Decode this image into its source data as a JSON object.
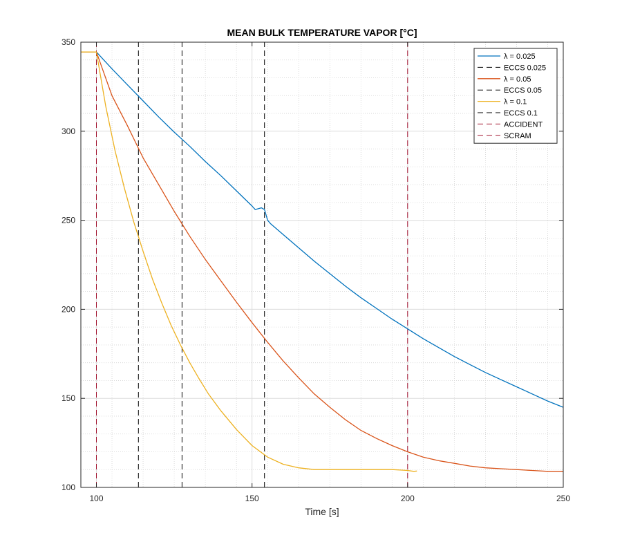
{
  "chart_data": {
    "type": "line",
    "title": "MEAN BULK TEMPERATURE VAPOR [°C]",
    "xlabel": "Time [s]",
    "ylabel": "",
    "xlim": [
      95,
      250
    ],
    "ylim": [
      100,
      350
    ],
    "xticks": [
      100,
      150,
      200,
      250
    ],
    "yticks": [
      100,
      150,
      200,
      250,
      300,
      350
    ],
    "grid": true,
    "minor_grid": true,
    "legend_position": "top-right",
    "series": [
      {
        "name": "λ = 0.025",
        "style": "solid",
        "color": "#0072bd",
        "x": [
          95,
          100,
          105,
          110,
          115,
          120,
          125,
          130,
          135,
          140,
          145,
          150,
          151,
          152,
          153,
          154,
          155,
          156,
          160,
          165,
          170,
          175,
          180,
          185,
          190,
          195,
          200,
          205,
          210,
          215,
          220,
          225,
          230,
          235,
          240,
          245,
          250
        ],
        "y": [
          344.5,
          344.5,
          335,
          326,
          317,
          308,
          299.5,
          291.5,
          283,
          275,
          266.5,
          258,
          256,
          256.5,
          257,
          256,
          250,
          248,
          242,
          234.5,
          227,
          220,
          213,
          206.5,
          200.5,
          194.5,
          189,
          183.5,
          178.5,
          173.5,
          169,
          164.5,
          160.5,
          156.5,
          152.5,
          148.5,
          145
        ]
      },
      {
        "name": "ECCS 0.025",
        "style": "dashed",
        "color": "#000000",
        "x": [
          154,
          154
        ],
        "y": [
          100,
          350
        ]
      },
      {
        "name": "λ = 0.05",
        "style": "solid",
        "color": "#d95319",
        "x": [
          95,
          100,
          105,
          110,
          115,
          120,
          125,
          130,
          135,
          140,
          145,
          150,
          155,
          160,
          165,
          170,
          175,
          180,
          185,
          190,
          195,
          200,
          205,
          210,
          215,
          220,
          225,
          230,
          235,
          240,
          245,
          250
        ],
        "y": [
          344.5,
          344.5,
          320,
          303,
          285,
          270,
          255,
          241,
          228,
          216,
          204,
          192.5,
          181.5,
          171,
          161.5,
          152.5,
          145,
          138,
          132,
          127.5,
          123.5,
          120,
          117,
          115,
          113.5,
          112,
          111,
          110.5,
          110,
          109.5,
          109,
          109
        ]
      },
      {
        "name": "ECCS 0.05",
        "style": "dashed",
        "color": "#000000",
        "x": [
          127.5,
          127.5
        ],
        "y": [
          100,
          350
        ]
      },
      {
        "name": "λ = 0.1",
        "style": "solid",
        "color": "#edb120",
        "x": [
          95,
          100,
          103,
          106,
          109,
          112,
          115,
          118,
          121,
          124,
          127,
          130,
          133,
          136,
          140,
          145,
          150,
          155,
          160,
          165,
          170,
          175,
          180,
          185,
          190,
          195,
          200,
          202,
          203
        ],
        "y": [
          344.5,
          344.5,
          314,
          289,
          268,
          249,
          232.5,
          217,
          203.5,
          191,
          180,
          170,
          161,
          152.5,
          143,
          132.5,
          123.5,
          117,
          113,
          111,
          110,
          110,
          110,
          110,
          110,
          110,
          109.5,
          109,
          109.2
        ]
      },
      {
        "name": "ECCS 0.1",
        "style": "dashed",
        "color": "#000000",
        "x": [
          113.5,
          113.5
        ],
        "y": [
          100,
          350
        ]
      },
      {
        "name": "ACCIDENT",
        "style": "dashed",
        "color": "#a2142f",
        "x": [
          100,
          100
        ],
        "y": [
          100,
          350
        ]
      },
      {
        "name": "SCRAM",
        "style": "dashed",
        "color": "#a2142f",
        "x": [
          200,
          200
        ],
        "y": [
          100,
          350
        ]
      }
    ]
  }
}
